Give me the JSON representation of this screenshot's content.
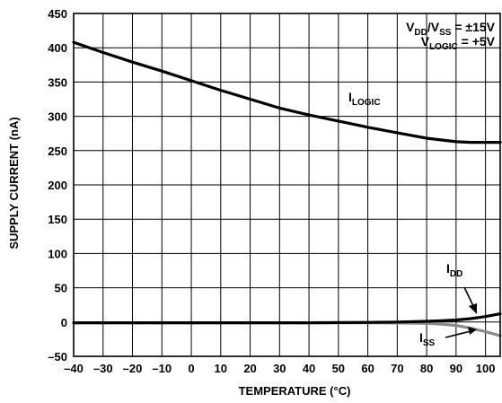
{
  "chart_data": {
    "type": "line",
    "xlabel": "TEMPERATURE (°C)",
    "ylabel": "SUPPLY CURRENT (nA)",
    "xlim": [
      -40,
      105
    ],
    "ylim": [
      -50,
      450
    ],
    "grid": true,
    "xticks": [
      -40,
      -30,
      -20,
      -10,
      0,
      10,
      20,
      30,
      40,
      50,
      60,
      70,
      80,
      90,
      100
    ],
    "xtick_labels": [
      "–40",
      "–30",
      "–20",
      "–10",
      "0",
      "10",
      "20",
      "30",
      "40",
      "50",
      "60",
      "70",
      "80",
      "90",
      "100"
    ],
    "yticks": [
      -50,
      0,
      50,
      100,
      150,
      200,
      250,
      300,
      350,
      400,
      450
    ],
    "ytick_labels": [
      "–50",
      "0",
      "50",
      "100",
      "150",
      "200",
      "250",
      "300",
      "350",
      "400",
      "450"
    ],
    "conditions": [
      {
        "main": "V",
        "sub": "DD",
        "mid": "/V",
        "sub2": "SS",
        "tail": " = ±15V"
      },
      {
        "main": "V",
        "sub": "LOGIC",
        "tail": " = +5V"
      }
    ],
    "series": [
      {
        "name": "I_LOGIC",
        "label_main": "I",
        "label_sub": "LOGIC",
        "color": "#000000",
        "x": [
          -40,
          -30,
          -20,
          -10,
          0,
          10,
          20,
          30,
          40,
          50,
          60,
          70,
          80,
          90,
          95,
          100,
          105
        ],
        "y": [
          408,
          393,
          379,
          366,
          352,
          338,
          325,
          312,
          302,
          293,
          284,
          276,
          268,
          263,
          262,
          262,
          262
        ]
      },
      {
        "name": "I_DD",
        "label_main": "I",
        "label_sub": "DD",
        "color": "#000000",
        "x": [
          -40,
          -20,
          0,
          20,
          40,
          60,
          70,
          80,
          85,
          90,
          95,
          100,
          105
        ],
        "y": [
          -1,
          -1,
          -1,
          -1,
          -1,
          -0.5,
          0,
          1,
          2,
          3,
          5,
          8,
          12
        ]
      },
      {
        "name": "I_SS",
        "label_main": "I",
        "label_sub": "SS",
        "color": "#8a8a8a",
        "x": [
          -40,
          -20,
          0,
          20,
          40,
          60,
          70,
          80,
          85,
          90,
          95,
          100,
          105
        ],
        "y": [
          -1,
          -1,
          -1,
          -1,
          -1,
          -1,
          -1.5,
          -2,
          -3,
          -5,
          -9,
          -14,
          -20
        ]
      }
    ]
  }
}
